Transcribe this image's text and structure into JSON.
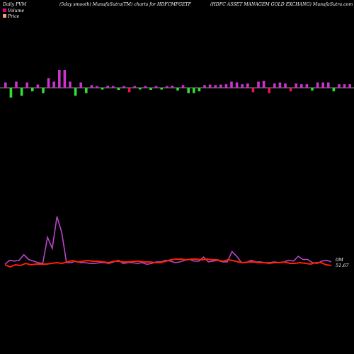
{
  "header": {
    "left": "Daily PVM",
    "middle": "(5day smooth) MunafaSutra(TM) charts for HDFCMFGETF",
    "right": "(HDFC ASSET MANAGEM GOLD EXCHANG) MunafaSutra.com"
  },
  "legend": [
    {
      "label": "Volume",
      "color": "#e6007e"
    },
    {
      "label": "Price",
      "color": "#f4a460"
    }
  ],
  "colors": {
    "background": "#000000",
    "volume_up": "#cc33cc",
    "volume_down": "#33dd33",
    "volume_hot": "#ee1155",
    "baseline": "#bbbbbb",
    "price_line": "#ff2200",
    "volume_line": "#bb44cc"
  },
  "chart_data": {
    "type": "bar+line",
    "volume_bars": [
      {
        "v": 0.3,
        "c": "up"
      },
      {
        "v": -0.55,
        "c": "down"
      },
      {
        "v": 0.35,
        "c": "up"
      },
      {
        "v": -0.45,
        "c": "down"
      },
      {
        "v": 0.3,
        "c": "up"
      },
      {
        "v": -0.2,
        "c": "down"
      },
      {
        "v": 0.18,
        "c": "up"
      },
      {
        "v": -0.3,
        "c": "down"
      },
      {
        "v": 0.55,
        "c": "up"
      },
      {
        "v": 0.35,
        "c": "up"
      },
      {
        "v": 1.0,
        "c": "up"
      },
      {
        "v": 1.0,
        "c": "up"
      },
      {
        "v": 0.35,
        "c": "up"
      },
      {
        "v": -0.45,
        "c": "down"
      },
      {
        "v": 0.3,
        "c": "up"
      },
      {
        "v": -0.3,
        "c": "down"
      },
      {
        "v": 0.15,
        "c": "up"
      },
      {
        "v": 0.1,
        "c": "up"
      },
      {
        "v": -0.1,
        "c": "down"
      },
      {
        "v": 0.12,
        "c": "up"
      },
      {
        "v": 0.1,
        "c": "up"
      },
      {
        "v": -0.12,
        "c": "down"
      },
      {
        "v": 0.1,
        "c": "up"
      },
      {
        "v": -0.25,
        "c": "hot"
      },
      {
        "v": 0.1,
        "c": "up"
      },
      {
        "v": -0.1,
        "c": "down"
      },
      {
        "v": 0.1,
        "c": "up"
      },
      {
        "v": -0.12,
        "c": "down"
      },
      {
        "v": 0.1,
        "c": "up"
      },
      {
        "v": -0.1,
        "c": "down"
      },
      {
        "v": 0.1,
        "c": "up"
      },
      {
        "v": 0.12,
        "c": "up"
      },
      {
        "v": -0.15,
        "c": "down"
      },
      {
        "v": 0.15,
        "c": "up"
      },
      {
        "v": -0.3,
        "c": "down"
      },
      {
        "v": -0.3,
        "c": "down"
      },
      {
        "v": -0.2,
        "c": "down"
      },
      {
        "v": 0.15,
        "c": "up"
      },
      {
        "v": 0.18,
        "c": "up"
      },
      {
        "v": 0.15,
        "c": "up"
      },
      {
        "v": 0.18,
        "c": "up"
      },
      {
        "v": 0.2,
        "c": "up"
      },
      {
        "v": 0.35,
        "c": "up"
      },
      {
        "v": 0.3,
        "c": "up"
      },
      {
        "v": 0.2,
        "c": "up"
      },
      {
        "v": 0.25,
        "c": "up"
      },
      {
        "v": -0.25,
        "c": "hot"
      },
      {
        "v": 0.35,
        "c": "up"
      },
      {
        "v": 0.4,
        "c": "up"
      },
      {
        "v": -0.3,
        "c": "hot"
      },
      {
        "v": 0.25,
        "c": "up"
      },
      {
        "v": 0.3,
        "c": "up"
      },
      {
        "v": 0.25,
        "c": "up"
      },
      {
        "v": -0.2,
        "c": "hot"
      },
      {
        "v": 0.25,
        "c": "up"
      },
      {
        "v": 0.2,
        "c": "up"
      },
      {
        "v": 0.2,
        "c": "up"
      },
      {
        "v": -0.15,
        "c": "down"
      },
      {
        "v": 0.3,
        "c": "up"
      },
      {
        "v": 0.3,
        "c": "up"
      },
      {
        "v": 0.3,
        "c": "up"
      },
      {
        "v": -0.2,
        "c": "down"
      },
      {
        "v": 0.2,
        "c": "up"
      },
      {
        "v": 0.2,
        "c": "up"
      },
      {
        "v": 0.2,
        "c": "up"
      },
      {
        "v": -0.25,
        "c": "hot"
      },
      {
        "v": -0.25,
        "c": "hot"
      }
    ],
    "price_series": [
      0.3,
      0.15,
      0.3,
      0.25,
      0.4,
      0.3,
      0.35,
      0.35,
      0.35,
      0.4,
      0.45,
      0.4,
      0.5,
      0.6,
      0.5,
      0.55,
      0.6,
      0.55,
      0.55,
      0.5,
      0.45,
      0.55,
      0.55,
      0.5,
      0.5,
      0.55,
      0.55,
      0.5,
      0.5,
      0.45,
      0.45,
      0.55,
      0.65,
      0.7,
      0.7,
      0.65,
      0.7,
      0.7,
      0.65,
      0.7,
      0.65,
      0.65,
      0.55,
      0.65,
      0.6,
      0.5,
      0.45,
      0.5,
      0.5,
      0.45,
      0.45,
      0.4,
      0.45,
      0.45,
      0.5,
      0.4,
      0.4,
      0.45,
      0.4,
      0.35,
      0.45,
      0.45,
      0.3,
      0.25
    ],
    "volume_series": [
      0.3,
      0.55,
      0.5,
      0.55,
      0.9,
      0.6,
      0.5,
      0.4,
      0.35,
      2.0,
      1.3,
      3.3,
      2.3,
      0.4,
      0.4,
      0.5,
      0.4,
      0.4,
      0.35,
      0.35,
      0.4,
      0.4,
      0.35,
      0.45,
      0.55,
      0.35,
      0.4,
      0.4,
      0.35,
      0.4,
      0.3,
      0.35,
      0.45,
      0.45,
      0.55,
      0.5,
      0.4,
      0.45,
      0.55,
      0.6,
      0.5,
      0.5,
      0.75,
      0.45,
      0.5,
      0.55,
      0.45,
      0.45,
      1.1,
      0.8,
      0.4,
      0.4,
      0.55,
      0.45,
      0.45,
      0.4,
      0.4,
      0.45,
      0.4,
      0.45,
      0.55,
      0.5,
      0.8,
      0.6,
      0.6,
      0.4,
      0.35,
      0.5,
      0.55,
      0.45
    ],
    "price_label": "51.67",
    "volume_label": "0M"
  }
}
